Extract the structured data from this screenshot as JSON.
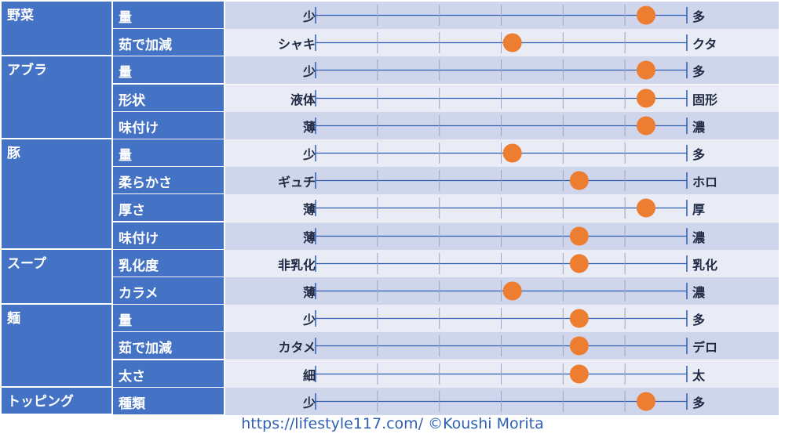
{
  "chart_data": {
    "type": "table",
    "scale_min": 1,
    "scale_max": 5,
    "groups": [
      {
        "category": "野菜",
        "rows": [
          {
            "label": "量",
            "low": "少",
            "high": "多",
            "value": 5
          },
          {
            "label": "茹で加減",
            "low": "シャキ",
            "high": "クタ",
            "value": 3
          }
        ]
      },
      {
        "category": "アブラ",
        "rows": [
          {
            "label": "量",
            "low": "少",
            "high": "多",
            "value": 5
          },
          {
            "label": "形状",
            "low": "液体",
            "high": "固形",
            "value": 5
          },
          {
            "label": "味付け",
            "low": "薄",
            "high": "濃",
            "value": 5
          }
        ]
      },
      {
        "category": "豚",
        "rows": [
          {
            "label": "量",
            "low": "少",
            "high": "多",
            "value": 3
          },
          {
            "label": "柔らかさ",
            "low": "ギュチ",
            "high": "ホロ",
            "value": 4
          },
          {
            "label": "厚さ",
            "low": "薄",
            "high": "厚",
            "value": 5
          },
          {
            "label": "味付け",
            "low": "薄",
            "high": "濃",
            "value": 4
          }
        ]
      },
      {
        "category": "スープ",
        "rows": [
          {
            "label": "乳化度",
            "low": "非乳化",
            "high": "乳化",
            "value": 4
          },
          {
            "label": "カラメ",
            "low": "薄",
            "high": "濃",
            "value": 3
          }
        ]
      },
      {
        "category": "麺",
        "rows": [
          {
            "label": "量",
            "low": "少",
            "high": "多",
            "value": 4
          },
          {
            "label": "茹で加減",
            "low": "カタメ",
            "high": "デロ",
            "value": 4
          },
          {
            "label": "太さ",
            "low": "細",
            "high": "太",
            "value": 4
          }
        ]
      },
      {
        "category": "トッピング",
        "rows": [
          {
            "label": "種類",
            "low": "少",
            "high": "多",
            "value": 5
          }
        ]
      }
    ]
  },
  "footer": "https://lifestyle117.com/  ©Koushi Morita",
  "colors": {
    "header_blue": "#4472c4",
    "row_dark": "#cfd5ea",
    "row_light": "#e9ebf5",
    "line": "#2f5fb3",
    "dot": "#ed7d31"
  }
}
